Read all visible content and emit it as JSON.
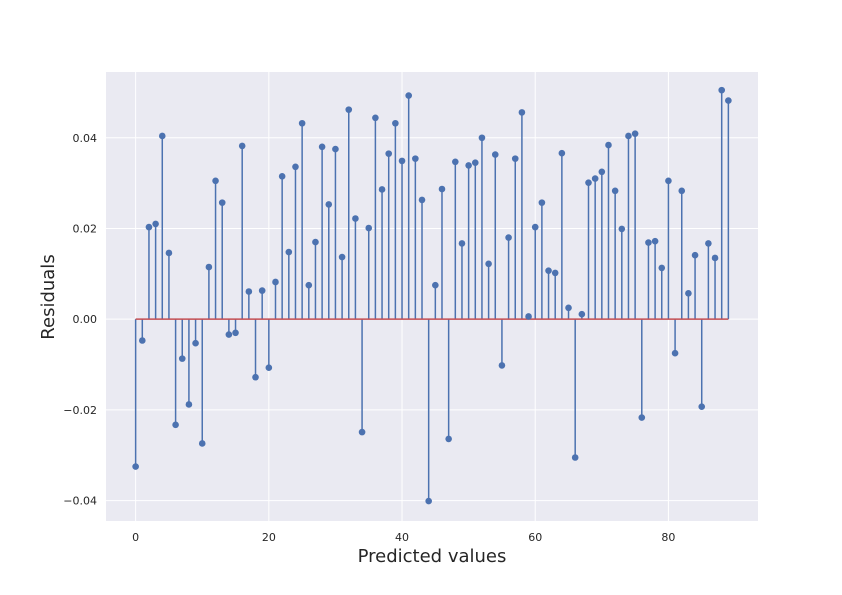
{
  "chart_data": {
    "type": "stem",
    "title": "",
    "xlabel": "Predicted values",
    "ylabel": "Residuals",
    "xlim": [
      -4.45,
      93.45
    ],
    "ylim": [
      -0.0445,
      0.0545
    ],
    "xticks": [
      0,
      20,
      40,
      60,
      80
    ],
    "xtick_labels": [
      "0",
      "20",
      "40",
      "60",
      "80"
    ],
    "yticks": [
      -0.04,
      -0.02,
      0.0,
      0.02,
      0.04
    ],
    "ytick_labels": [
      "−0.04",
      "−0.02",
      "0.00",
      "0.02",
      "0.04"
    ],
    "grid": true,
    "baseline": 0.0,
    "colors": {
      "background": "#eaeaf2",
      "grid": "#ffffff",
      "stem": "#4c72b0",
      "marker": "#4c72b0",
      "baseline": "#c44e52"
    },
    "x": [
      0,
      1,
      2,
      3,
      4,
      5,
      6,
      7,
      8,
      9,
      10,
      11,
      12,
      13,
      14,
      15,
      16,
      17,
      18,
      19,
      20,
      21,
      22,
      23,
      24,
      25,
      26,
      27,
      28,
      29,
      30,
      31,
      32,
      33,
      34,
      35,
      36,
      37,
      38,
      39,
      40,
      41,
      42,
      43,
      44,
      45,
      46,
      47,
      48,
      49,
      50,
      51,
      52,
      53,
      54,
      55,
      56,
      57,
      58,
      59,
      60,
      61,
      62,
      63,
      64,
      65,
      66,
      67,
      68,
      69,
      70,
      71,
      72,
      73,
      74,
      75,
      76,
      77,
      78,
      79,
      80,
      81,
      82,
      83,
      84,
      85,
      86,
      87,
      88,
      89
    ],
    "values": [
      -0.0325,
      -0.0047,
      0.0203,
      0.021,
      0.0404,
      0.0146,
      -0.0233,
      -0.0087,
      -0.0188,
      -0.0053,
      -0.0274,
      0.0115,
      0.0305,
      0.0257,
      -0.0034,
      -0.003,
      0.0382,
      0.0061,
      -0.0128,
      0.0063,
      -0.0107,
      0.0082,
      0.0315,
      0.0148,
      0.0336,
      0.0432,
      0.0075,
      0.017,
      0.038,
      0.0253,
      0.0375,
      0.0137,
      0.0462,
      0.0222,
      -0.0249,
      0.0201,
      0.0444,
      0.0286,
      0.0365,
      0.0432,
      0.0349,
      0.0493,
      0.0354,
      0.0263,
      -0.0401,
      0.0075,
      0.0287,
      -0.0264,
      0.0347,
      0.0167,
      0.0339,
      0.0345,
      0.04,
      0.0122,
      0.0363,
      -0.0102,
      0.018,
      0.0354,
      0.0456,
      0.0006,
      0.0203,
      0.0257,
      0.0107,
      0.0102,
      0.0366,
      0.0025,
      -0.0305,
      0.0011,
      0.0301,
      0.031,
      0.0325,
      0.0384,
      0.0283,
      0.0199,
      0.0404,
      0.0409,
      -0.0217,
      0.0169,
      0.0172,
      0.0113,
      0.0305,
      -0.0075,
      0.0283,
      0.0057,
      0.0141,
      -0.0193,
      0.0167,
      0.0135,
      0.0505,
      0.0482
    ]
  }
}
